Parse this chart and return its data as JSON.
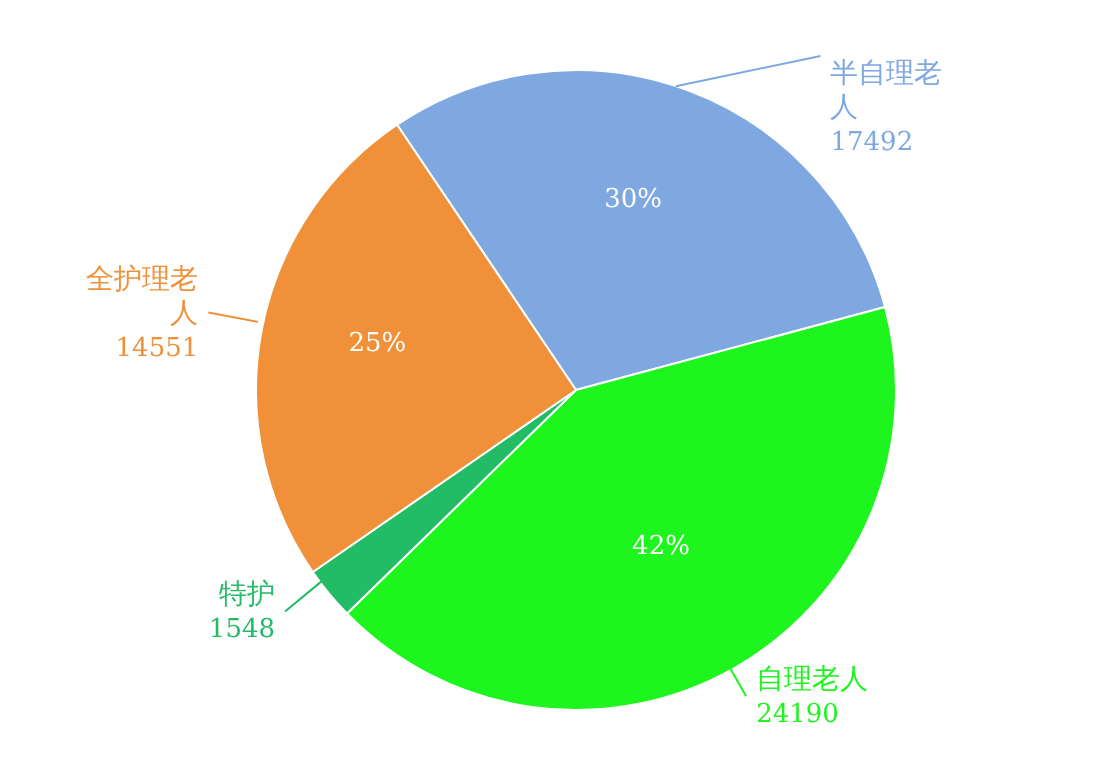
{
  "chart_data": {
    "type": "pie",
    "categories": [
      "半自理老人",
      "自理老人",
      "特护",
      "全护理老人"
    ],
    "values": [
      17492,
      24190,
      1548,
      14551
    ],
    "colors": [
      "#7fa8e0",
      "#1ef51e",
      "#22bb66",
      "#f0913a"
    ],
    "data_labels": true,
    "annotations": [
      {
        "text": "30%",
        "x": "半自理老人"
      },
      {
        "text": "42%",
        "x": "自理老人"
      },
      {
        "text": "25%",
        "x": "全护理老人"
      }
    ],
    "legend": false
  }
}
